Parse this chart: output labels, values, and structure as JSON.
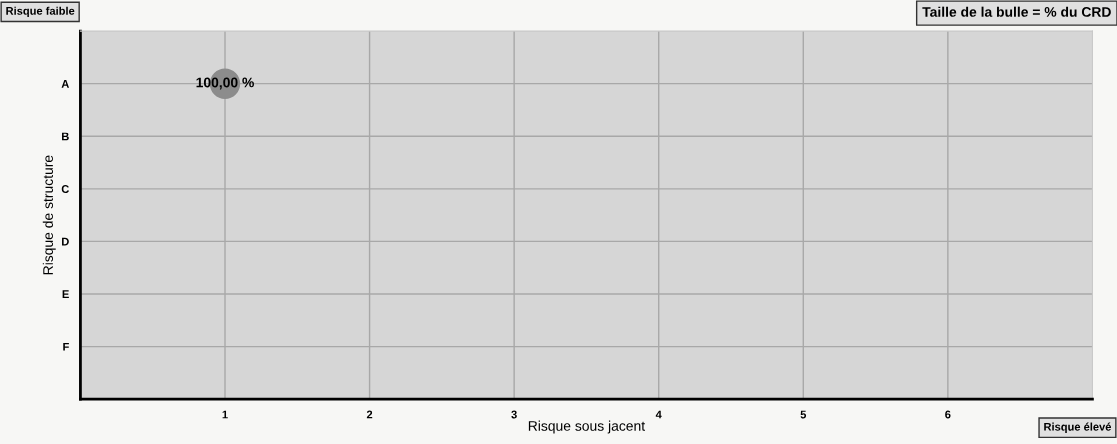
{
  "chart_data": {
    "type": "bubble",
    "orientation": "horizontal",
    "xlabel": "Risque sous jacent",
    "ylabel": "Risque de structure",
    "categories": [
      "A",
      "B",
      "C",
      "D",
      "E",
      "F"
    ],
    "series": [
      {
        "color": "#8c8c8c",
        "values": [
          1,
          null,
          null,
          null,
          null,
          null
        ],
        "sizes": [
          1,
          null,
          null,
          null,
          null,
          null
        ],
        "value_labels": [
          "100,00 %",
          null,
          null,
          null,
          null,
          null
        ]
      }
    ],
    "xlim": [
      0,
      7
    ],
    "xticks": [
      1,
      2,
      3,
      4,
      5,
      6
    ],
    "grid": true,
    "legend": false,
    "annotations": [
      "Risque faible",
      "Taille de la bulle = % du CRD",
      "Risque élevé"
    ]
  }
}
